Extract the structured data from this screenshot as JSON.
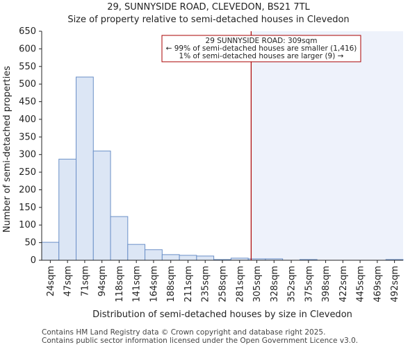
{
  "chart_data": {
    "type": "bar",
    "title": "29, SUNNYSIDE ROAD, CLEVEDON, BS21 7TL",
    "subtitle": "Size of property relative to semi-detached houses in Clevedon",
    "xlabel": "Distribution of semi-detached houses by size in Clevedon",
    "ylabel": "Number of semi-detached properties",
    "categories": [
      "24sqm",
      "47sqm",
      "71sqm",
      "94sqm",
      "118sqm",
      "141sqm",
      "164sqm",
      "188sqm",
      "211sqm",
      "235sqm",
      "258sqm",
      "281sqm",
      "305sqm",
      "328sqm",
      "352sqm",
      "375sqm",
      "398sqm",
      "422sqm",
      "445sqm",
      "469sqm",
      "492sqm"
    ],
    "values": [
      51,
      287,
      520,
      310,
      124,
      45,
      30,
      16,
      14,
      12,
      2,
      6,
      4,
      4,
      0,
      2,
      0,
      0,
      0,
      0,
      2
    ],
    "ylim": [
      0,
      650
    ],
    "yticks": [
      0,
      50,
      100,
      150,
      200,
      250,
      300,
      350,
      400,
      450,
      500,
      550,
      600,
      650
    ],
    "marker": {
      "value_sqm": 309,
      "bin_position": 12.17,
      "line1": "29 SUNNYSIDE ROAD: 309sqm",
      "line2": "← 99% of semi-detached houses are smaller (1,416)",
      "line3": "1% of semi-detached houses are larger (9) →"
    },
    "colors": {
      "bar_fill": "#dce6f5",
      "bar_stroke": "#6a8fc7",
      "marker": "#aa0000",
      "shade": "#eef2fb"
    }
  },
  "footer": {
    "line1": "Contains HM Land Registry data © Crown copyright and database right 2025.",
    "line2": "Contains public sector information licensed under the Open Government Licence v3.0."
  }
}
